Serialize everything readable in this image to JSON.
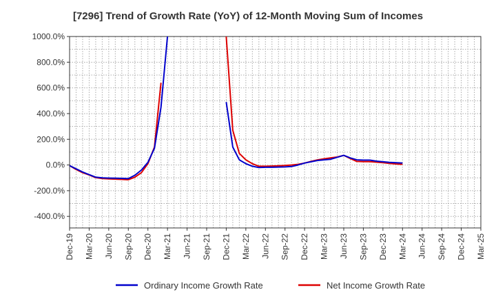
{
  "chart_data": {
    "type": "line",
    "title": "[7296]  Trend of Growth Rate (YoY) of 12-Month Moving Sum of Incomes",
    "xlabel": "",
    "ylabel": "",
    "x_ticks": [
      "Dec-19",
      "Mar-20",
      "Jun-20",
      "Sep-20",
      "Dec-20",
      "Mar-21",
      "Jun-21",
      "Sep-21",
      "Dec-21",
      "Mar-22",
      "Jun-22",
      "Sep-22",
      "Dec-22",
      "Mar-23",
      "Jun-23",
      "Sep-23",
      "Dec-23",
      "Mar-24",
      "Jun-24",
      "Sep-24",
      "Dec-24",
      "Mar-25"
    ],
    "y_ticks": [
      "1000.0%",
      "800.0%",
      "600.0%",
      "400.0%",
      "200.0%",
      "0.0%",
      "-200.0%",
      "-400.0%"
    ],
    "y_tick_values": [
      1000,
      800,
      600,
      400,
      200,
      0,
      -200,
      -400
    ],
    "ylim": [
      -490,
      1000
    ],
    "grid": true,
    "legend_position": "bottom",
    "series": [
      {
        "name": "Ordinary Income Growth Rate",
        "color": "#0000cc",
        "values": [
          -5,
          -30,
          -55,
          -75,
          -95,
          -100,
          -102,
          -103,
          -104,
          -106,
          -80,
          -40,
          20,
          130,
          450,
          1000,
          null,
          null,
          null,
          null,
          null,
          null,
          null,
          null,
          490,
          140,
          40,
          10,
          -10,
          -20,
          -18,
          -18,
          -16,
          -15,
          -12,
          0,
          15,
          25,
          35,
          40,
          45,
          60,
          75,
          55,
          40,
          38,
          38,
          30,
          25,
          20,
          18,
          15
        ]
      },
      {
        "name": "Net Income Growth Rate",
        "color": "#dd0000",
        "values": [
          -5,
          -35,
          -60,
          -78,
          -98,
          -105,
          -108,
          -110,
          -112,
          -115,
          -95,
          -60,
          10,
          140,
          640,
          null,
          null,
          null,
          null,
          null,
          null,
          null,
          null,
          null,
          1000,
          270,
          90,
          40,
          10,
          -10,
          -10,
          -8,
          -6,
          -4,
          0,
          5,
          15,
          28,
          40,
          48,
          55,
          62,
          75,
          50,
          28,
          26,
          26,
          22,
          18,
          12,
          8,
          5
        ]
      }
    ]
  }
}
